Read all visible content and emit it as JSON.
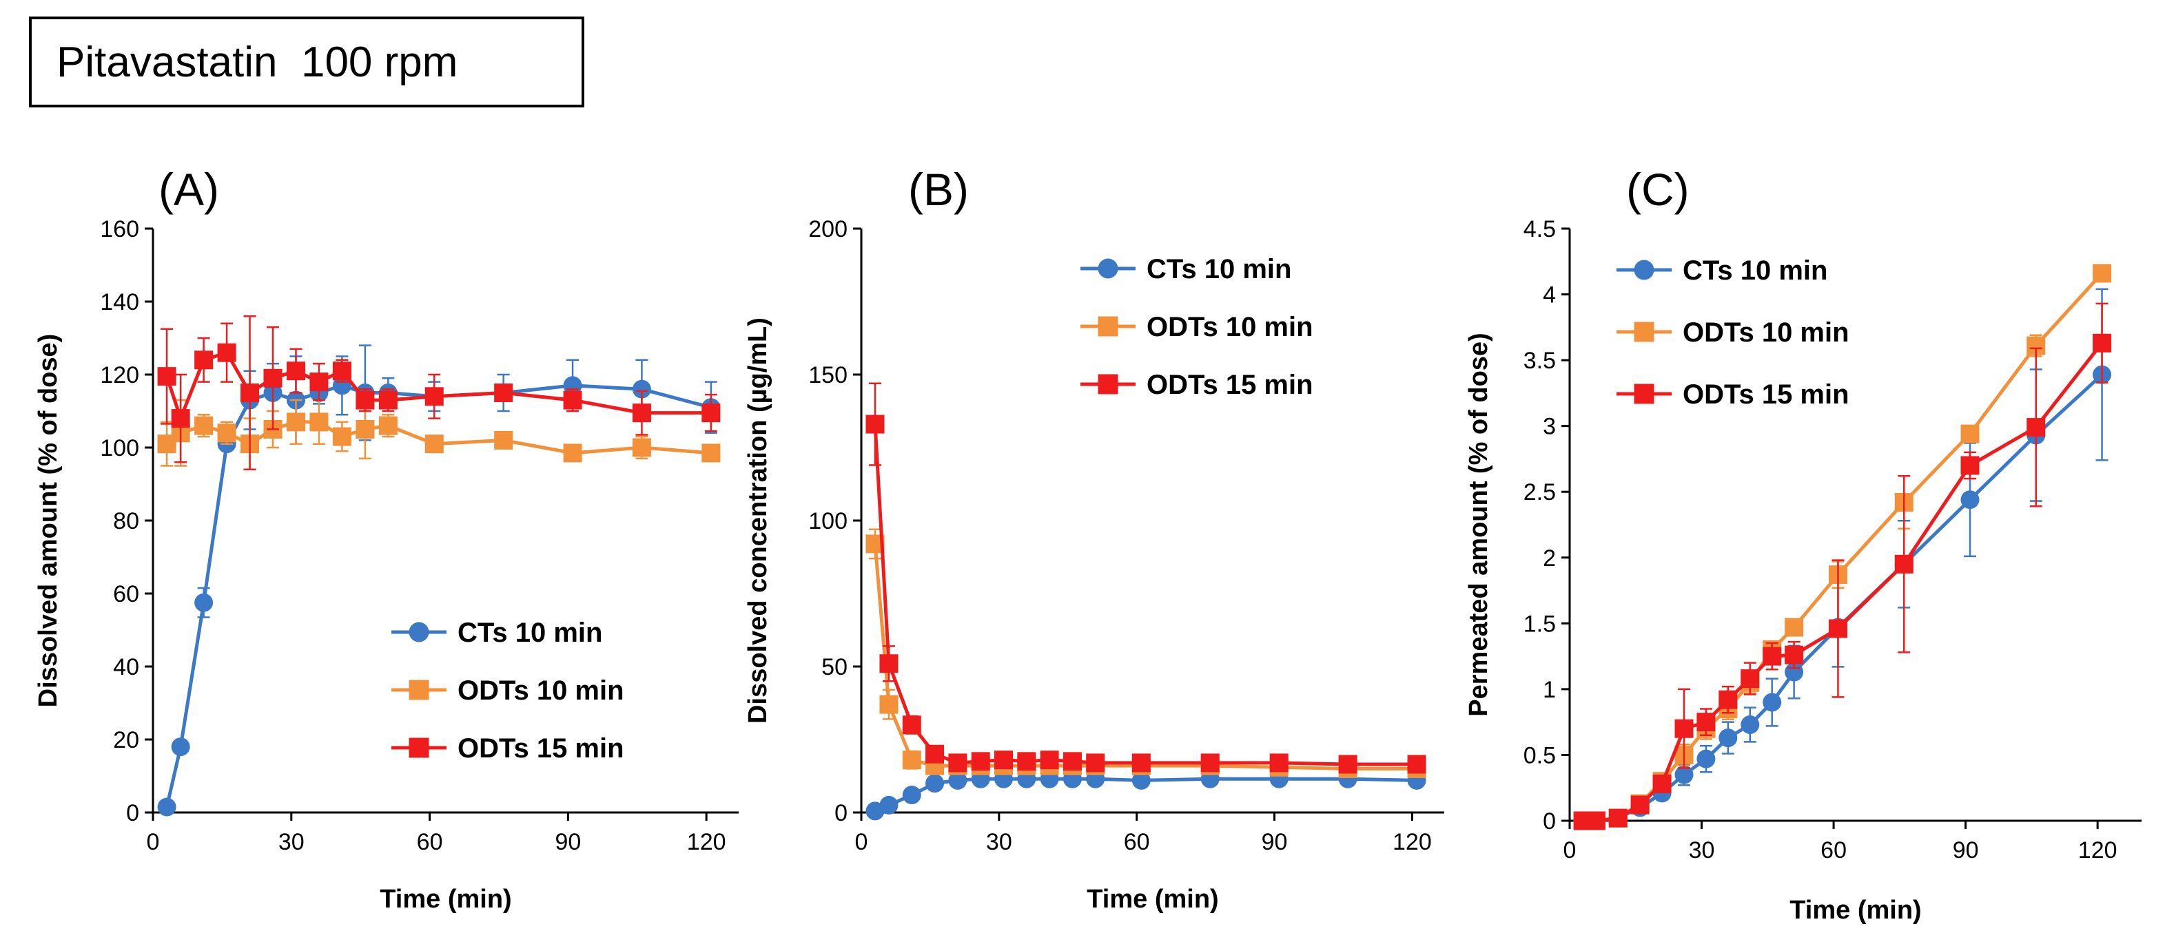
{
  "figure_title": "Pitavastatin  100 rpm",
  "colors": {
    "ct": "#3b78c5",
    "odt10": "#f3913a",
    "odt15": "#ee1c1c",
    "axis": "#000000"
  },
  "chart_data": [
    {
      "type": "line",
      "panel": "(A)",
      "xlabel": "Time (min)",
      "ylabel": "Dissolved amount (% of dose)",
      "xlim": [
        0,
        127
      ],
      "ylim": [
        0,
        160
      ],
      "xticks": [
        0,
        30,
        60,
        90,
        120
      ],
      "yticks": [
        0,
        20,
        40,
        60,
        80,
        100,
        120,
        140,
        160
      ],
      "legend_position": "bottom-right",
      "series": [
        {
          "name": "CTs 10 min",
          "color": "#3b78c5",
          "marker": "circle",
          "x": [
            3,
            6,
            11,
            16,
            21,
            26,
            31,
            36,
            41,
            46,
            51,
            61,
            76,
            91,
            106,
            121
          ],
          "y": [
            1.5,
            18,
            57.5,
            101,
            113,
            115,
            113,
            115,
            117,
            115,
            115,
            114,
            115,
            117,
            116,
            111
          ],
          "err": [
            0,
            0,
            4,
            0,
            8,
            8,
            12,
            3,
            8,
            13,
            4,
            4,
            5,
            7,
            8,
            7
          ]
        },
        {
          "name": "ODTs 10 min",
          "color": "#f3913a",
          "marker": "square",
          "x": [
            3,
            6,
            11,
            16,
            21,
            26,
            31,
            36,
            41,
            46,
            51,
            61,
            76,
            91,
            106,
            121
          ],
          "y": [
            101,
            104,
            106,
            104,
            101,
            105,
            107,
            107,
            103,
            105,
            106,
            101,
            102,
            98.5,
            100,
            98.5
          ],
          "err": [
            6,
            9,
            3,
            3,
            7,
            5,
            6,
            6,
            4,
            8,
            3,
            2,
            2,
            2,
            3,
            2
          ]
        },
        {
          "name": "ODTs 15 min",
          "color": "#ee1c1c",
          "marker": "square",
          "x": [
            3,
            6,
            11,
            16,
            21,
            26,
            31,
            36,
            41,
            46,
            51,
            61,
            76,
            91,
            106,
            121
          ],
          "y": [
            119.5,
            108,
            124,
            126,
            115,
            119,
            121,
            118,
            121,
            113,
            113,
            114,
            115,
            113,
            109.5,
            109.5
          ],
          "err": [
            13,
            12,
            6,
            8,
            21,
            14,
            6,
            5,
            3,
            3,
            3,
            6,
            2,
            3,
            6,
            5
          ]
        }
      ]
    },
    {
      "type": "line",
      "panel": "(B)",
      "xlabel": "Time (min)",
      "ylabel": "Dissolved concentration (µg/mL)",
      "xlim": [
        0,
        127
      ],
      "ylim": [
        0,
        200
      ],
      "xticks": [
        0,
        30,
        60,
        90,
        120
      ],
      "yticks": [
        0,
        50,
        100,
        150,
        200
      ],
      "legend_position": "top-right",
      "series": [
        {
          "name": "CTs 10 min",
          "color": "#3b78c5",
          "marker": "circle",
          "x": [
            3,
            6,
            11,
            16,
            21,
            26,
            31,
            36,
            41,
            46,
            51,
            61,
            76,
            91,
            106,
            121
          ],
          "y": [
            0.5,
            2.5,
            6,
            10,
            11,
            11.5,
            11.5,
            11.5,
            11.5,
            11.5,
            11.5,
            11,
            11.5,
            11.5,
            11.5,
            11
          ],
          "err": [
            0,
            0,
            1,
            1,
            1,
            1,
            1,
            1,
            1,
            1,
            1,
            1,
            1,
            1,
            1,
            1
          ]
        },
        {
          "name": "ODTs 10 min",
          "color": "#f3913a",
          "marker": "square",
          "x": [
            3,
            6,
            11,
            16,
            21,
            26,
            31,
            36,
            41,
            46,
            51,
            61,
            76,
            91,
            106,
            121
          ],
          "y": [
            92,
            37,
            18,
            16,
            16,
            16,
            16,
            16,
            16,
            16,
            16,
            16,
            16,
            15.5,
            15,
            15
          ],
          "err": [
            5,
            5,
            3,
            2,
            1,
            1,
            1,
            1,
            1,
            1,
            1,
            1,
            1,
            1,
            1,
            1
          ]
        },
        {
          "name": "ODTs 15 min",
          "color": "#ee1c1c",
          "marker": "square",
          "x": [
            3,
            6,
            11,
            16,
            21,
            26,
            31,
            36,
            41,
            46,
            51,
            61,
            76,
            91,
            106,
            121
          ],
          "y": [
            133,
            51,
            30,
            20,
            17,
            17.5,
            18,
            17.5,
            18,
            17.5,
            17,
            17,
            17,
            17,
            16.5,
            16.5
          ],
          "err": [
            14,
            6,
            3,
            2,
            1,
            1,
            1,
            1,
            1,
            1,
            1,
            1,
            1,
            1,
            1,
            1
          ]
        }
      ]
    },
    {
      "type": "line",
      "panel": "(C)",
      "xlabel": "Time (min)",
      "ylabel": "Permeated amount  (% of dose)",
      "xlim": [
        0,
        130
      ],
      "ylim": [
        0,
        4.5
      ],
      "xticks": [
        0,
        30,
        60,
        90,
        120
      ],
      "ytick_labels": [
        "0",
        "0.5",
        "1",
        "1.5",
        "2",
        "2.5",
        "3",
        "3.5",
        "4",
        "4.5"
      ],
      "yticks": [
        0,
        0.5,
        1,
        1.5,
        2,
        2.5,
        3,
        3.5,
        4,
        4.5
      ],
      "legend_position": "top-left",
      "series": [
        {
          "name": "CTs 10 min",
          "color": "#3b78c5",
          "marker": "circle",
          "x": [
            3,
            6,
            11,
            16,
            21,
            26,
            31,
            36,
            41,
            46,
            51,
            61,
            76,
            91,
            106,
            121
          ],
          "y": [
            0,
            0,
            0.02,
            0.1,
            0.21,
            0.35,
            0.47,
            0.63,
            0.73,
            0.9,
            1.13,
            1.47,
            1.95,
            2.44,
            2.93,
            3.39
          ],
          "err": [
            0,
            0,
            0,
            0.03,
            0.05,
            0.08,
            0.1,
            0.12,
            0.13,
            0.18,
            0.2,
            0.3,
            0.33,
            0.43,
            0.5,
            0.65
          ]
        },
        {
          "name": "ODTs 10 min",
          "color": "#f3913a",
          "marker": "square",
          "x": [
            3,
            6,
            11,
            16,
            21,
            26,
            31,
            36,
            41,
            46,
            51,
            61,
            76,
            91,
            106,
            121
          ],
          "y": [
            0,
            0,
            0.02,
            0.13,
            0.3,
            0.5,
            0.7,
            0.85,
            1.05,
            1.3,
            1.47,
            1.87,
            2.42,
            2.94,
            3.61,
            4.16
          ],
          "err": [
            0,
            0,
            0,
            0.03,
            0.05,
            0.08,
            0.08,
            0.08,
            0.08,
            0.05,
            0.05,
            0.1,
            0.2,
            0.05,
            0.08,
            0.05
          ]
        },
        {
          "name": "ODTs 15 min",
          "color": "#ee1c1c",
          "marker": "square",
          "x": [
            3,
            6,
            11,
            16,
            21,
            26,
            31,
            36,
            41,
            46,
            51,
            61,
            76,
            91,
            106,
            121
          ],
          "y": [
            0,
            0,
            0.02,
            0.12,
            0.28,
            0.7,
            0.75,
            0.92,
            1.08,
            1.25,
            1.26,
            1.46,
            1.95,
            2.7,
            2.99,
            3.63
          ],
          "err": [
            0,
            0,
            0,
            0.03,
            0.05,
            0.3,
            0.1,
            0.1,
            0.12,
            0.1,
            0.1,
            0.52,
            0.67,
            0.1,
            0.6,
            0.3
          ]
        }
      ]
    }
  ]
}
